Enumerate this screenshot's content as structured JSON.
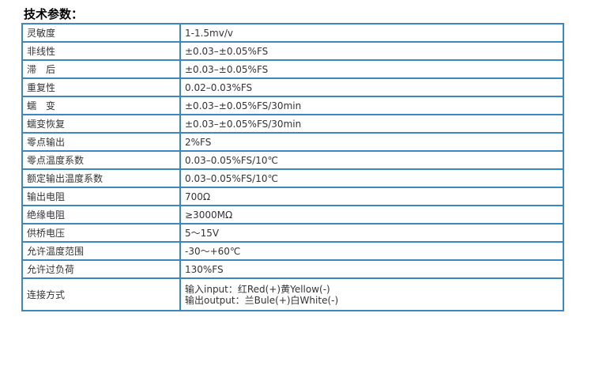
{
  "title": "技术参数：",
  "rows": [
    {
      "label": "灵敏度",
      "value": "1-1.5mv/v"
    },
    {
      "label": "非线性",
      "value": "±0.03–±0.05%FS"
    },
    {
      "label": "滞　后",
      "value": "±0.03–±0.05%FS"
    },
    {
      "label": "重复性",
      "value": "0.02–0.03%FS"
    },
    {
      "label": "蠕　变",
      "value": "±0.03–±0.05%FS/30min"
    },
    {
      "label": "蠕变恢复",
      "value": "±0.03–±0.05%FS/30min"
    },
    {
      "label": "零点输出",
      "value": "2%FS"
    },
    {
      "label": "零点温度系数",
      "value": "0.03–0.05%FS/10℃"
    },
    {
      "label": "额定输出温度系数",
      "value": "0.03–0.05%FS/10℃"
    },
    {
      "label": "输出电阻",
      "value": "700Ω"
    },
    {
      "label": "绝缘电阻",
      "value": "≥3000MΩ"
    },
    {
      "label": "供桥电压",
      "value": "5～15V"
    },
    {
      "label": "允许温度范围",
      "value": "-30～+60℃"
    },
    {
      "label": "允许过负荷",
      "value": "130%FS"
    }
  ],
  "connection": {
    "label": "连接方式",
    "line1": "输入input：红Red(+)黄Yellow(-)",
    "line2": "输出output：兰Bule(+)白White(-)"
  }
}
